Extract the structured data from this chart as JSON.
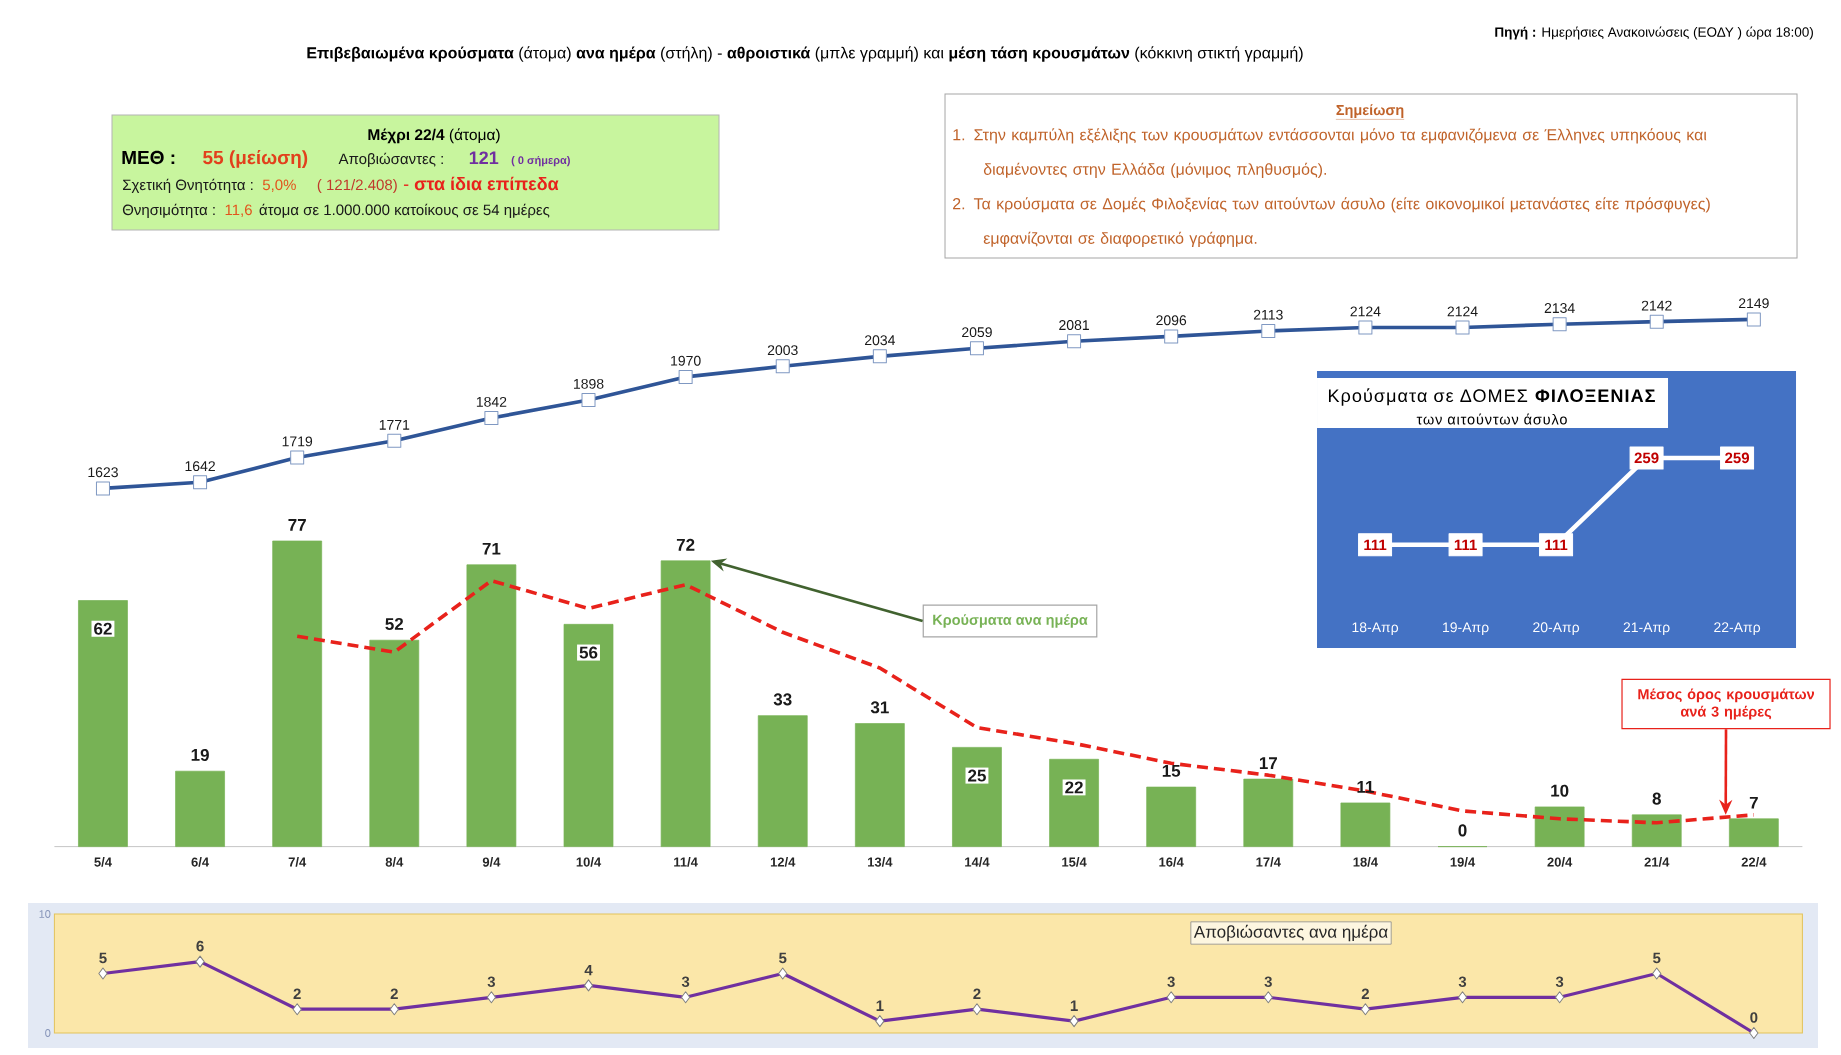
{
  "chart_data": [
    {
      "type": "bar",
      "annotations": [
        "**Πηγή :** Ημερήσιες Ανακοινώσεις (ΕΟΔΥ ) ώρα 18:00)"
      ],
      "categories": [
        "5/4",
        "6/4",
        "7/4",
        "8/4",
        "9/4",
        "10/4",
        "11/4",
        "12/4",
        "13/4",
        "14/4",
        "15/4",
        "16/4",
        "17/4",
        "18/4",
        "19/4",
        "20/4",
        "21/4",
        "22/4"
      ],
      "series": [
        {
          "name": "Κρούσματα ανα ημέρα",
          "type": "bar",
          "color": "#77b255",
          "values": [
            62,
            19,
            77,
            52,
            71,
            56,
            72,
            33,
            31,
            25,
            22,
            15,
            17,
            11,
            0,
            10,
            8,
            7
          ],
          "value_labels": [
            "62",
            "19",
            "77",
            "52",
            "71",
            "56",
            "72",
            "33",
            "31",
            "25",
            "22",
            "15",
            "17",
            "11",
            "0",
            "10",
            "8",
            "7"
          ]
        },
        {
          "name": "Μέσος όρος κρουσμάτων ανά 3 ημέρες",
          "type": "line",
          "color": "#e8221b",
          "line_style": "dashed",
          "values": [
            null,
            null,
            53,
            49,
            67,
            60,
            66,
            54,
            45,
            30,
            26,
            21,
            18,
            14,
            9,
            7,
            6,
            8
          ]
        }
      ],
      "ylim": [
        0,
        77
      ],
      "tick_labels": "x"
    },
    {
      "type": "line",
      "title": "**Επιβεβαιωμένα κρούσματα** (άτομα) **ανα ημέρα** (στήλη) - **αθροιστικά** (μπλε γραμμή) και **μέση τάση κρουσμάτων** (κόκκινη στικτή γραμμή)",
      "categories": [
        null,
        null,
        null,
        null,
        null,
        null,
        null,
        null,
        null,
        null,
        null,
        null,
        null,
        null,
        null,
        null,
        null,
        null
      ],
      "values": [
        1623,
        1642,
        1719,
        1771,
        1842,
        1898,
        1970,
        2003,
        2034,
        2059,
        2081,
        2096,
        2113,
        2124,
        2124,
        2134,
        2142,
        2149
      ],
      "color": "#2f5597",
      "marker": "square",
      "data_labels": true
    },
    {
      "type": "other",
      "annotations": [
        "**Μέχρι 22/4** (άτομα)",
        "ΜΕΘ :",
        "55 (μείωση)",
        "Αποβιώσαντες :",
        "121",
        "( 0 σήμερα)",
        "Σχετική Θνητότητα :",
        "5,0%",
        "( 121/2.408)",
        "- **στα ίδια επίπεδα**",
        "Θνησιμότητα :",
        "11,6",
        "άτομα σε 1.000.000 κατοίκους σε 54 ημέρες"
      ]
    },
    {
      "type": "other",
      "title": "Σημείωση",
      "annotations": [
        "1. Στην καμπύλη εξέλιξης των κρουσμάτων εντάσσονται μόνο τα εμφανιζόμενα σε Έλληνες υπηκόους και διαμένοντες στην Ελλάδα (μόνιμος πληθυσμός).",
        "2. Τα κρούσματα σε Δομές Φιλοξενίας των αιτούντων άσυλο (είτε οικονομικοί μετανάστες είτε πρόσφυγες) εμφανίζονται σε διαφορετικό γράφημα."
      ]
    },
    {
      "type": "line",
      "title": "Κρούσματα σε ΔΟΜΕΣ **ΦΙΛΟΞΕΝΙΑΣ**",
      "subtitle": "των αιτούντων άσυλο",
      "categories": [
        "18-Απρ",
        "19-Απρ",
        "20-Απρ",
        "21-Απρ",
        "22-Απρ"
      ],
      "values": [
        111,
        111,
        111,
        259,
        259
      ],
      "color": "#ffffff",
      "marker": "square",
      "data_labels": true,
      "tick_labels": "x"
    },
    {
      "type": "line",
      "title": "Αποβιώσαντες ανα ημέρα",
      "categories": [
        null,
        null,
        null,
        null,
        null,
        null,
        null,
        null,
        null,
        null,
        null,
        null,
        null,
        null,
        null,
        null,
        null,
        null
      ],
      "values": [
        5,
        6,
        2,
        2,
        3,
        4,
        3,
        5,
        1,
        2,
        1,
        3,
        3,
        2,
        3,
        3,
        5,
        0
      ],
      "color": "#7030a0",
      "marker": "diamond",
      "data_labels": true,
      "ylim": [
        0,
        10
      ],
      "yticks": [
        0,
        10
      ],
      "tick_labels": "y"
    }
  ]
}
